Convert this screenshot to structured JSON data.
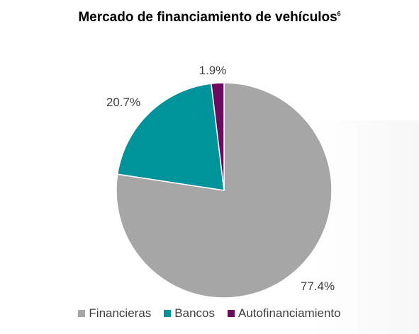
{
  "title": {
    "text": "Mercado de financiamiento de vehículos",
    "superscript": "6"
  },
  "chart_data": {
    "type": "pie",
    "title": "Mercado de financiamiento de vehículos⁶",
    "slices": [
      {
        "name": "Financieras",
        "value": 77.4,
        "label": "77.4%",
        "color": "#A6A6A6"
      },
      {
        "name": "Bancos",
        "value": 20.7,
        "label": "20.7%",
        "color": "#00939C"
      },
      {
        "name": "Autofinanciamiento",
        "value": 1.9,
        "label": "1.9%",
        "color": "#6B0B5F"
      }
    ],
    "legend": {
      "position": "bottom",
      "entries": [
        "Financieras",
        "Bancos",
        "Autofinanciamiento"
      ]
    }
  }
}
